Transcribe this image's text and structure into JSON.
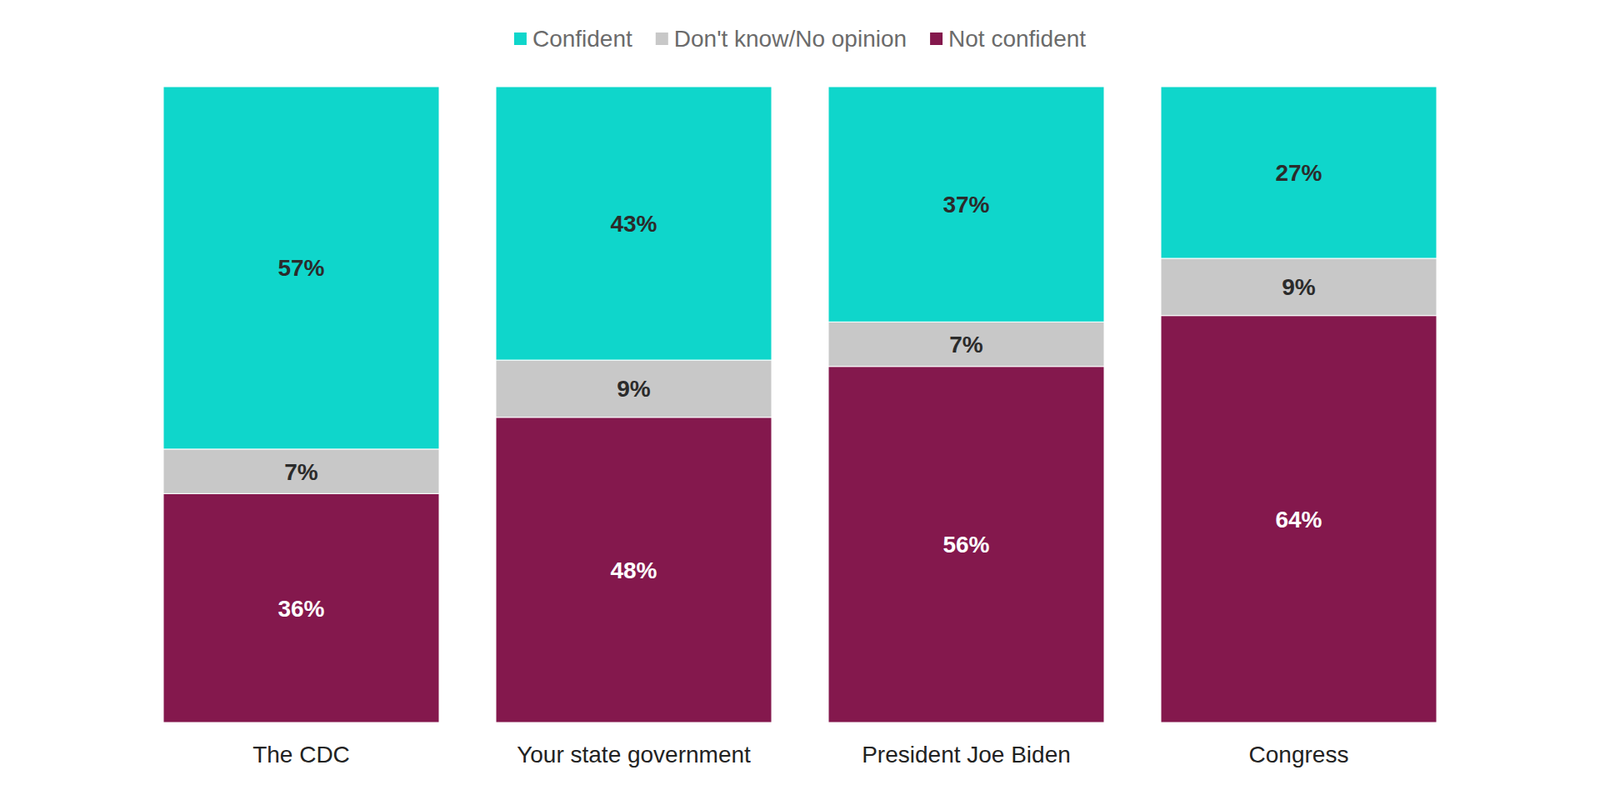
{
  "chart_data": {
    "type": "bar",
    "stacked": true,
    "data_labels": true,
    "tick_labels": "x",
    "legend": "top",
    "categories": [
      "The CDC",
      "Your state government",
      "President Joe Biden",
      "Congress"
    ],
    "ylim": [
      0,
      100
    ],
    "series": [
      {
        "name": "Confident",
        "color": "#0fd6cb",
        "values": [
          57,
          43,
          37,
          27
        ],
        "value_labels": [
          "57%",
          "43%",
          "37%",
          "27%"
        ]
      },
      {
        "name": "Don't know/No opinion",
        "color": "#c8c8c8",
        "values": [
          7,
          9,
          7,
          9
        ],
        "value_labels": [
          "7%",
          "9%",
          "7%",
          "9%"
        ]
      },
      {
        "name": "Not confident",
        "color": "#84184d",
        "values": [
          36,
          48,
          56,
          64
        ],
        "value_labels": [
          "36%",
          "48%",
          "56%",
          "64%"
        ]
      }
    ]
  }
}
